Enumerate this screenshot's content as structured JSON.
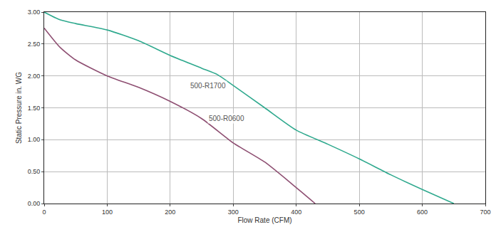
{
  "chart_data": {
    "type": "line",
    "x_label": "Flow Rate (CFM)",
    "y_label": "Static Pressure in. WG",
    "series": [
      {
        "name": "500-R1700",
        "color": "#2fa98e",
        "x": [
          0,
          25,
          50,
          100,
          150,
          200,
          250,
          275,
          300,
          350,
          400,
          450,
          500,
          550,
          600,
          650
        ],
        "values": [
          3.0,
          2.88,
          2.82,
          2.72,
          2.55,
          2.32,
          2.12,
          2.02,
          1.85,
          1.5,
          1.15,
          0.93,
          0.7,
          0.45,
          0.22,
          0.0
        ]
      },
      {
        "name": "500-R0600",
        "color": "#8e4f72",
        "x": [
          0,
          25,
          50,
          100,
          150,
          200,
          250,
          300,
          350,
          400,
          430
        ],
        "values": [
          2.75,
          2.45,
          2.25,
          2.0,
          1.82,
          1.6,
          1.33,
          0.95,
          0.65,
          0.25,
          0.0
        ]
      }
    ],
    "xlim": [
      0,
      700
    ],
    "xticks": [
      0,
      100,
      200,
      300,
      400,
      500,
      600,
      700
    ],
    "ylim": [
      0,
      3
    ],
    "yticks": [
      {
        "value": 0,
        "label": "0.00"
      },
      {
        "value": 0.5,
        "label": "0.50"
      },
      {
        "value": 1,
        "label": "1.00"
      },
      {
        "value": 1.5,
        "label": "1.50"
      },
      {
        "value": 2,
        "label": "2.00"
      },
      {
        "value": 2.5,
        "label": "2.50"
      },
      {
        "value": 3,
        "label": "3.00"
      }
    ],
    "grid": true
  }
}
